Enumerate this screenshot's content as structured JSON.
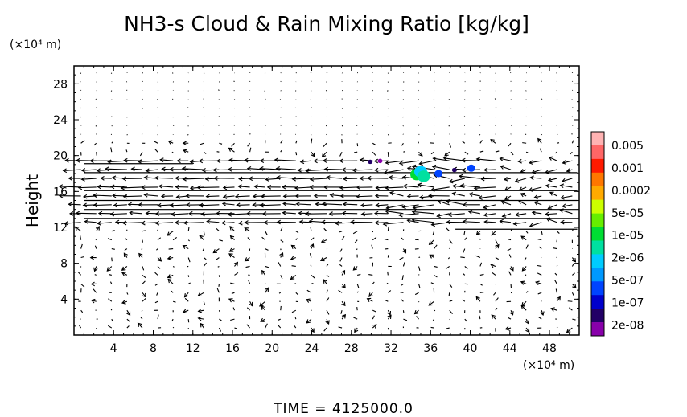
{
  "chart_data": {
    "type": "vector-contour",
    "title": "NH3-s Cloud & Rain Mixing Ratio [kg/kg]",
    "ylabel": "Height",
    "x_unit": "(×10⁴ m)",
    "y_unit": "(×10⁴ m)",
    "xlim": [
      0,
      51
    ],
    "ylim": [
      0,
      30
    ],
    "x_ticks": [
      "4",
      "8",
      "12",
      "16",
      "20",
      "24",
      "28",
      "32",
      "36",
      "40",
      "44",
      "48"
    ],
    "y_ticks": [
      "4",
      "8",
      "12",
      "16",
      "20",
      "24",
      "28"
    ],
    "colorbar": {
      "labels": [
        "0.005",
        "0.001",
        "0.0002",
        "5e-05",
        "1e-05",
        "2e-06",
        "5e-07",
        "1e-07",
        "2e-08"
      ],
      "colors": [
        "#ffb3b3",
        "#ff6666",
        "#ff1a00",
        "#ff7700",
        "#ffaa00",
        "#ccff00",
        "#66ee00",
        "#00dd33",
        "#00e0a0",
        "#00ccff",
        "#0099ff",
        "#0044ff",
        "#0000cc",
        "#220066",
        "#8800aa"
      ]
    },
    "cloud_patches": [
      {
        "x": 34.6,
        "y": 17.9,
        "level": 7
      },
      {
        "x": 35.0,
        "y": 18.2,
        "level": 9
      },
      {
        "x": 35.3,
        "y": 17.7,
        "level": 8
      },
      {
        "x": 36.8,
        "y": 18.0,
        "level": 11
      },
      {
        "x": 40.1,
        "y": 18.6,
        "level": 11
      },
      {
        "x": 38.4,
        "y": 18.4,
        "level": 13
      },
      {
        "x": 29.9,
        "y": 19.3,
        "level": 13
      },
      {
        "x": 30.9,
        "y": 19.4,
        "level": 14
      }
    ],
    "time_label": "TIME  =  4125000.0"
  }
}
